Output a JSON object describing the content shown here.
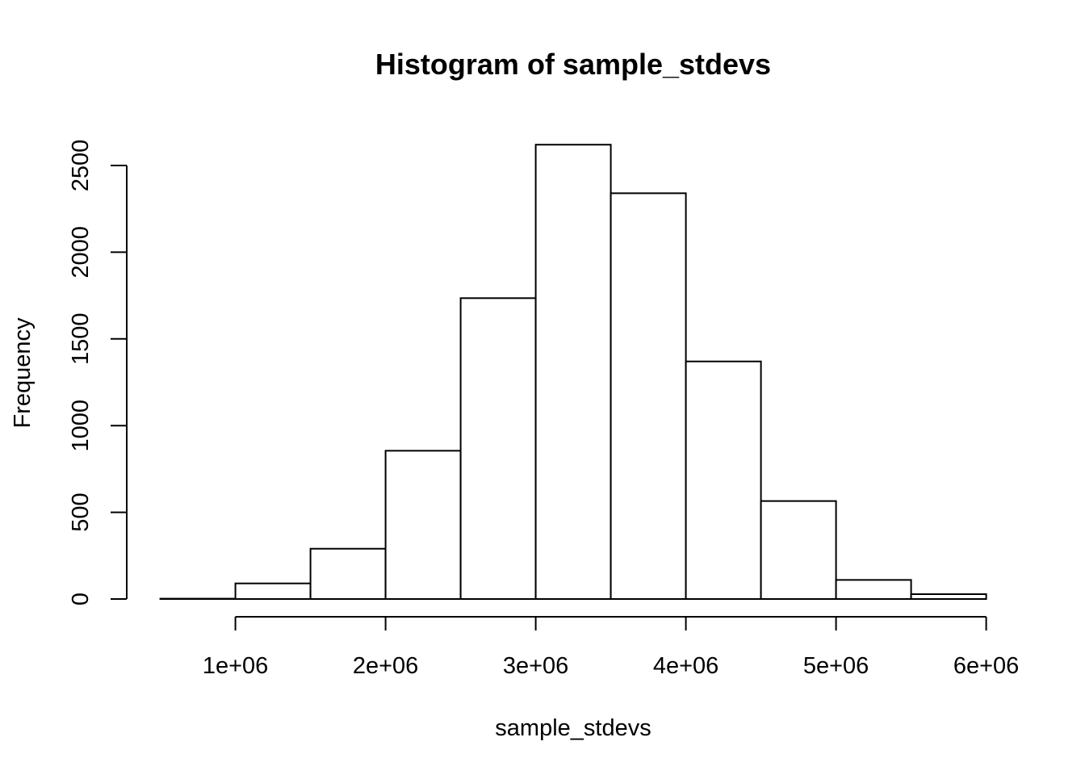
{
  "chart_data": {
    "type": "histogram",
    "title": "Histogram of sample_stdevs",
    "xlabel": "sample_stdevs",
    "ylabel": "Frequency",
    "bins": [
      {
        "x0": 500000,
        "x1": 1000000,
        "count": 2
      },
      {
        "x0": 1000000,
        "x1": 1500000,
        "count": 90
      },
      {
        "x0": 1500000,
        "x1": 2000000,
        "count": 290
      },
      {
        "x0": 2000000,
        "x1": 2500000,
        "count": 855
      },
      {
        "x0": 2500000,
        "x1": 3000000,
        "count": 1735
      },
      {
        "x0": 3000000,
        "x1": 3500000,
        "count": 2620
      },
      {
        "x0": 3500000,
        "x1": 4000000,
        "count": 2340
      },
      {
        "x0": 4000000,
        "x1": 4500000,
        "count": 1370
      },
      {
        "x0": 4500000,
        "x1": 5000000,
        "count": 565
      },
      {
        "x0": 5000000,
        "x1": 5500000,
        "count": 110
      },
      {
        "x0": 5500000,
        "x1": 6000000,
        "count": 28
      }
    ],
    "xlim": [
      500000,
      6000000
    ],
    "ylim": [
      0,
      2620
    ],
    "xticks": [
      {
        "value": 1000000,
        "label": "1e+06"
      },
      {
        "value": 2000000,
        "label": "2e+06"
      },
      {
        "value": 3000000,
        "label": "3e+06"
      },
      {
        "value": 4000000,
        "label": "4e+06"
      },
      {
        "value": 5000000,
        "label": "5e+06"
      },
      {
        "value": 6000000,
        "label": "6e+06"
      }
    ],
    "yticks": [
      {
        "value": 0,
        "label": "0"
      },
      {
        "value": 500,
        "label": "500"
      },
      {
        "value": 1000,
        "label": "1000"
      },
      {
        "value": 1500,
        "label": "1500"
      },
      {
        "value": 2000,
        "label": "2000"
      },
      {
        "value": 2500,
        "label": "2500"
      }
    ],
    "grid": false,
    "colors": {
      "bar_fill": "#ffffff",
      "bar_stroke": "#000000"
    }
  }
}
